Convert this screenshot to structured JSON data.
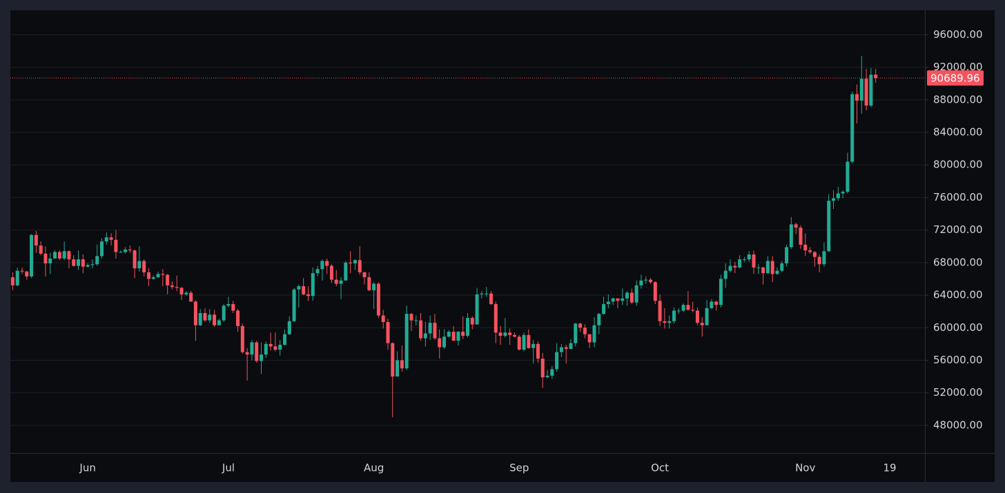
{
  "chart_data": {
    "type": "candlestick",
    "up_color": "#22ab94",
    "down_color": "#f7525f",
    "grid": true,
    "ylim": [
      44600,
      99000
    ],
    "yticks": [
      {
        "value": 48000,
        "label": "48000.00"
      },
      {
        "value": 52000,
        "label": "52000.00"
      },
      {
        "value": 56000,
        "label": "56000.00"
      },
      {
        "value": 60000,
        "label": "60000.00"
      },
      {
        "value": 64000,
        "label": "64000.00"
      },
      {
        "value": 68000,
        "label": "68000.00"
      },
      {
        "value": 72000,
        "label": "72000.00"
      },
      {
        "value": 76000,
        "label": "76000.00"
      },
      {
        "value": 80000,
        "label": "80000.00"
      },
      {
        "value": 84000,
        "label": "84000.00"
      },
      {
        "value": 88000,
        "label": "88000.00"
      },
      {
        "value": 92000,
        "label": "92000.00"
      },
      {
        "value": 96000,
        "label": "96000.00"
      }
    ],
    "categories": [
      null,
      null,
      null,
      null,
      null,
      null,
      null,
      null,
      null,
      null,
      null,
      null,
      null,
      null,
      null,
      null,
      "Jun",
      null,
      null,
      null,
      null,
      null,
      null,
      null,
      null,
      null,
      null,
      null,
      null,
      null,
      null,
      null,
      null,
      null,
      null,
      null,
      null,
      null,
      null,
      null,
      null,
      null,
      null,
      null,
      null,
      null,
      "Jul",
      null,
      null,
      null,
      null,
      null,
      null,
      null,
      null,
      null,
      null,
      null,
      null,
      null,
      null,
      null,
      null,
      null,
      null,
      null,
      null,
      null,
      null,
      null,
      null,
      null,
      null,
      null,
      null,
      null,
      null,
      "Aug",
      null,
      null,
      null,
      null,
      null,
      null,
      null,
      null,
      null,
      null,
      null,
      null,
      null,
      null,
      null,
      null,
      null,
      null,
      null,
      null,
      null,
      null,
      null,
      null,
      null,
      null,
      null,
      null,
      null,
      null,
      "Sep",
      null,
      null,
      null,
      null,
      null,
      null,
      null,
      null,
      null,
      null,
      null,
      null,
      null,
      null,
      null,
      null,
      null,
      null,
      null,
      null,
      null,
      null,
      null,
      null,
      null,
      null,
      null,
      null,
      null,
      "Oct",
      null,
      null,
      null,
      null,
      null,
      null,
      null,
      null,
      null,
      null,
      null,
      null,
      null,
      null,
      null,
      null,
      null,
      null,
      null,
      null,
      null,
      null,
      null,
      null,
      null,
      null,
      null,
      null,
      null,
      null,
      "Nov",
      null,
      null,
      null,
      null,
      null,
      null,
      null,
      null,
      null,
      null,
      null,
      null,
      null,
      null,
      null,
      null,
      null,
      "19",
      null,
      null,
      null,
      null,
      null,
      null,
      null
    ],
    "open": [
      66200,
      65200,
      67000,
      66900,
      66300,
      71400,
      70100,
      69100,
      67900,
      68500,
      69300,
      68500,
      69400,
      68400,
      67600,
      68400,
      67500,
      67700,
      67800,
      68800,
      70600,
      71100,
      70800,
      69300,
      69300,
      69600,
      69500,
      67300,
      68200,
      66800,
      66000,
      66200,
      66600,
      66500,
      65200,
      65000,
      64900,
      64100,
      64300,
      63200,
      60300,
      61800,
      60900,
      61600,
      60300,
      60900,
      62700,
      62900,
      62100,
      60200,
      57000,
      56700,
      58200,
      55900,
      56700,
      58000,
      57700,
      57300,
      57900,
      59200,
      60800,
      64700,
      65100,
      64100,
      63900,
      66700,
      67200,
      68200,
      67600,
      65900,
      65400,
      65800,
      68000,
      67900,
      68300,
      66800,
      66200,
      64600,
      65400,
      61500,
      60700,
      58100,
      54000,
      56000,
      55000,
      61700,
      60900,
      60900,
      58700,
      59300,
      60600,
      58700,
      57600,
      58900,
      59500,
      58400,
      59500,
      59000,
      61200,
      60400,
      64100,
      64200,
      64200,
      62900,
      59400,
      59000,
      59400,
      59100,
      58900,
      57300,
      59100,
      57500,
      58000,
      56200,
      53900,
      54100,
      54900,
      57000,
      57600,
      57400,
      58100,
      60500,
      60000,
      59200,
      58200,
      60300,
      61700,
      62900,
      63200,
      63600,
      63300,
      63600,
      64300,
      63100,
      65200,
      65800,
      65900,
      65600,
      63300,
      60800,
      60600,
      60800,
      62100,
      62100,
      62800,
      62200,
      62100,
      60600,
      60300,
      62400,
      63200,
      62800,
      66000,
      67000,
      67600,
      67400,
      68400,
      68400,
      69000,
      67400,
      67400,
      66700,
      68200,
      66600,
      67000,
      67900,
      69900,
      72700,
      72300,
      70200,
      69500,
      69300,
      68700,
      67800,
      69400,
      75600,
      75900,
      76500,
      76700,
      80400,
      88700,
      87900,
      90600,
      87300,
      91100,
      null,
      null,
      null,
      null,
      null,
      null,
      null,
      null,
      null,
      null
    ],
    "high": [
      66800,
      67400,
      67400,
      67000,
      71500,
      71900,
      70600,
      70000,
      69200,
      69500,
      69500,
      70600,
      69500,
      68900,
      69500,
      69000,
      67900,
      68400,
      70200,
      71000,
      71700,
      71600,
      72000,
      69500,
      69900,
      70100,
      69600,
      70000,
      68400,
      67300,
      66400,
      66900,
      67200,
      66600,
      65700,
      66400,
      65000,
      64500,
      64500,
      63400,
      62300,
      62400,
      62300,
      62200,
      61100,
      62900,
      63800,
      63300,
      62300,
      60500,
      57500,
      58500,
      58400,
      58200,
      58300,
      59400,
      59400,
      58500,
      59800,
      61400,
      64900,
      65300,
      66100,
      65100,
      67400,
      67600,
      68400,
      68500,
      67800,
      67100,
      66200,
      68200,
      69400,
      68400,
      70000,
      66900,
      66800,
      65600,
      65600,
      62200,
      61100,
      58200,
      57100,
      57800,
      62700,
      61800,
      61500,
      61800,
      60700,
      61500,
      61700,
      59800,
      59800,
      59700,
      60200,
      59600,
      61400,
      61800,
      61400,
      64900,
      64500,
      65000,
      64500,
      63200,
      60200,
      61200,
      59900,
      59400,
      59100,
      59400,
      59800,
      58500,
      58300,
      56900,
      54800,
      55300,
      58100,
      58000,
      57900,
      58600,
      60600,
      60600,
      60400,
      59200,
      61300,
      61800,
      63800,
      64100,
      63700,
      63600,
      64800,
      64500,
      64800,
      65800,
      66500,
      66300,
      66100,
      65700,
      64100,
      62400,
      61500,
      62500,
      62400,
      63000,
      64500,
      63200,
      62500,
      61300,
      63400,
      63500,
      63300,
      66500,
      67900,
      68400,
      68100,
      68900,
      68700,
      69400,
      69500,
      67800,
      67500,
      68800,
      68800,
      67400,
      68200,
      70200,
      73600,
      72900,
      72600,
      71600,
      69900,
      69400,
      69000,
      70500,
      76400,
      76900,
      77300,
      76900,
      81500,
      89000,
      89900,
      93400,
      91800,
      91900,
      91800,
      null,
      null,
      null,
      null,
      null,
      null,
      null,
      null,
      null,
      null
    ],
    "low": [
      64600,
      65100,
      66600,
      65900,
      66100,
      69200,
      68900,
      66300,
      66600,
      68500,
      68300,
      68300,
      67300,
      67500,
      67100,
      66700,
      67400,
      67300,
      67600,
      68500,
      70200,
      70100,
      68500,
      69200,
      69100,
      69200,
      66100,
      66900,
      66300,
      65100,
      65900,
      66100,
      65100,
      64100,
      64700,
      64500,
      63400,
      63900,
      63200,
      58400,
      60200,
      60700,
      60600,
      60100,
      60300,
      60700,
      62500,
      61800,
      59500,
      56800,
      53500,
      56000,
      55700,
      54300,
      56300,
      57200,
      57100,
      56600,
      57800,
      59100,
      60700,
      62500,
      64000,
      63300,
      63300,
      66300,
      65800,
      66600,
      65500,
      65100,
      63500,
      65800,
      66700,
      67100,
      66500,
      65300,
      64500,
      62300,
      61200,
      59900,
      57300,
      49000,
      54000,
      54600,
      54800,
      59600,
      60300,
      58400,
      57700,
      58500,
      58500,
      56200,
      57400,
      58800,
      58400,
      57800,
      58600,
      58800,
      59800,
      60400,
      63600,
      63800,
      62800,
      58100,
      57900,
      58800,
      57900,
      58800,
      57200,
      57100,
      57400,
      55600,
      55700,
      52600,
      53800,
      53700,
      54600,
      56400,
      55600,
      57300,
      57700,
      59500,
      58700,
      57500,
      57600,
      59200,
      61600,
      62400,
      62800,
      62400,
      62800,
      62700,
      62900,
      62700,
      64800,
      65400,
      65400,
      62900,
      60200,
      59900,
      59900,
      60500,
      61700,
      61900,
      62100,
      61900,
      60300,
      58900,
      60300,
      62300,
      62100,
      62500,
      64900,
      66800,
      66700,
      67300,
      68100,
      68100,
      66600,
      66600,
      65300,
      66600,
      65600,
      66500,
      66800,
      67500,
      69700,
      71500,
      69700,
      68800,
      69100,
      67500,
      66800,
      67500,
      69300,
      74600,
      75600,
      75900,
      76500,
      80200,
      85100,
      86300,
      86700,
      87100,
      90100,
      null,
      null,
      null,
      null,
      null,
      null,
      null,
      null,
      null,
      null
    ],
    "close": [
      65200,
      67000,
      66900,
      66300,
      71400,
      70100,
      69100,
      67900,
      68500,
      69300,
      68500,
      69400,
      68400,
      67600,
      68400,
      67500,
      67700,
      67800,
      68800,
      70600,
      71100,
      70800,
      69300,
      69300,
      69600,
      69500,
      67300,
      68200,
      66800,
      66000,
      66200,
      66600,
      66500,
      65200,
      65000,
      64900,
      64100,
      64300,
      63200,
      60300,
      61800,
      60900,
      61600,
      60300,
      60900,
      62700,
      62900,
      62100,
      60200,
      57000,
      56700,
      58200,
      55900,
      56700,
      58000,
      57700,
      57300,
      57900,
      59200,
      60800,
      64700,
      65100,
      64100,
      63900,
      66700,
      67200,
      68200,
      67600,
      65900,
      65400,
      65800,
      68000,
      67900,
      68300,
      66800,
      66200,
      64600,
      65400,
      61500,
      60700,
      58100,
      54000,
      56000,
      55000,
      61700,
      60900,
      60900,
      58700,
      59300,
      60600,
      58700,
      57600,
      58900,
      59500,
      58400,
      59500,
      59000,
      61200,
      60400,
      64100,
      64200,
      64200,
      62900,
      59400,
      59000,
      59400,
      59100,
      58900,
      57300,
      59100,
      57500,
      58000,
      56200,
      53900,
      54100,
      54900,
      57000,
      57600,
      57400,
      58100,
      60500,
      60000,
      59200,
      58200,
      60300,
      61700,
      62900,
      63200,
      63600,
      63300,
      63600,
      64300,
      63100,
      65200,
      65800,
      65900,
      65600,
      63300,
      60800,
      60600,
      60800,
      62100,
      62100,
      62800,
      62200,
      62100,
      60600,
      60300,
      62400,
      63200,
      62800,
      66000,
      67000,
      67600,
      67400,
      68400,
      68400,
      69000,
      67400,
      67400,
      66700,
      68200,
      66600,
      67000,
      67900,
      69900,
      72700,
      72300,
      70200,
      69500,
      69300,
      68700,
      67800,
      69400,
      75600,
      75900,
      76500,
      76700,
      80400,
      88700,
      87900,
      90600,
      87300,
      91100,
      90689.96,
      null,
      null,
      null,
      null,
      null,
      null,
      null,
      null,
      null,
      null
    ]
  }
}
